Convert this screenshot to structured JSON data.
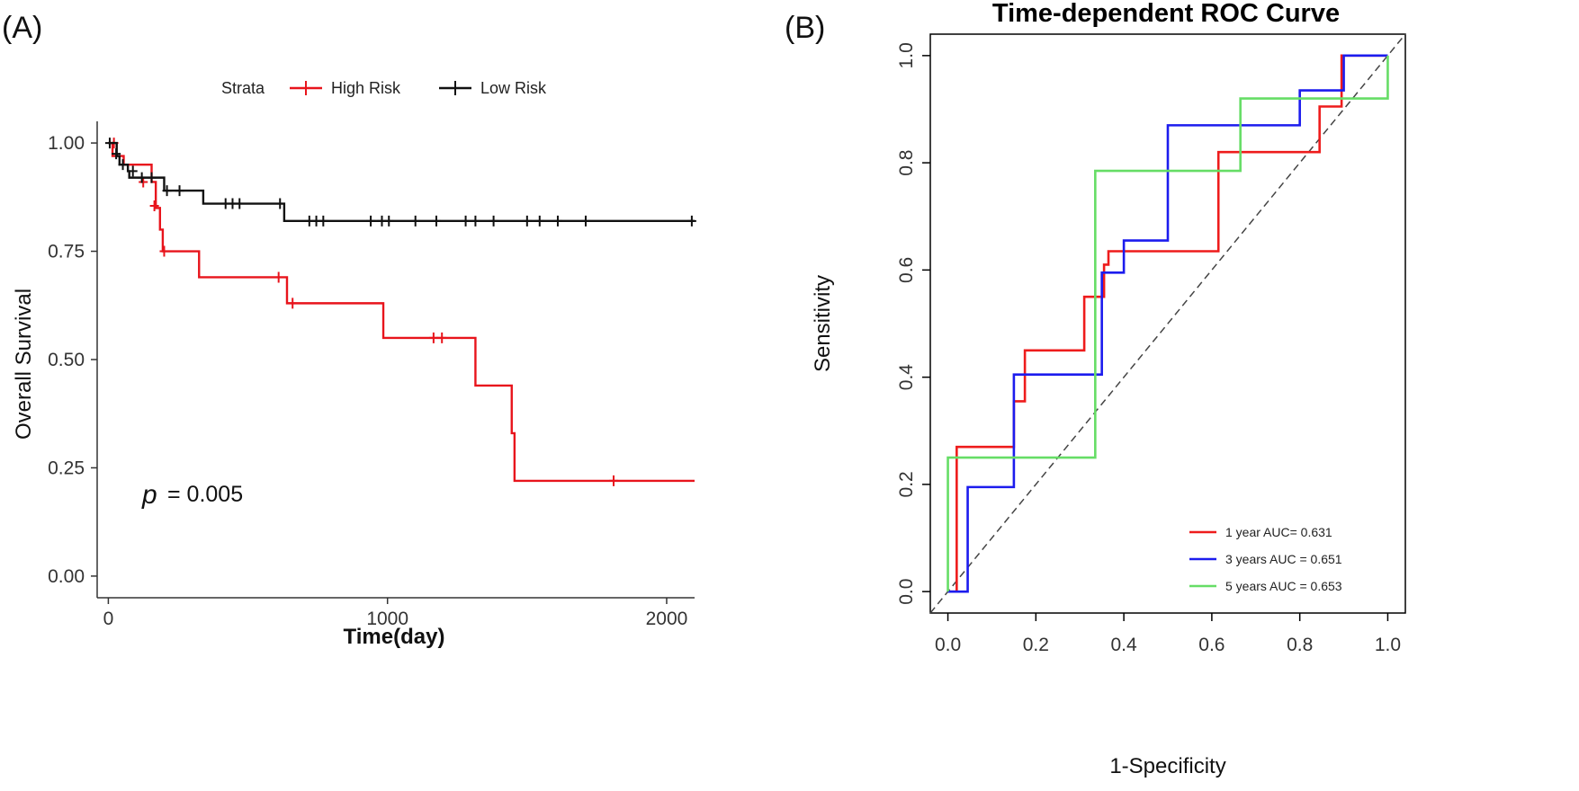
{
  "panels": {
    "a_label": "(A)",
    "b_label": "(B)"
  },
  "chart_data": [
    {
      "type": "line",
      "subtype": "kaplan-meier",
      "title": "",
      "xlabel": "Time(day)",
      "ylabel": "Overall Survival",
      "xlim": [
        -40,
        2100
      ],
      "ylim": [
        -0.05,
        1.05
      ],
      "xticks": [
        0,
        1000,
        2000
      ],
      "xtick_labels": [
        "0",
        "1000",
        "2000"
      ],
      "yticks": [
        0,
        0.25,
        0.5,
        0.75,
        1.0
      ],
      "ytick_labels": [
        "0.00",
        "0.25",
        "0.50",
        "0.75",
        "1.00"
      ],
      "legend_title": "Strata",
      "legend_position": "top",
      "annotation": {
        "p_symbol": "p",
        "p_text": "= 0.005",
        "p_value": 0.005
      },
      "series": [
        {
          "name": "High Risk",
          "color": "#e8141c",
          "steps": [
            [
              0,
              1.0
            ],
            [
              15,
              0.97
            ],
            [
              55,
              0.95
            ],
            [
              155,
              0.91
            ],
            [
              170,
              0.85
            ],
            [
              185,
              0.8
            ],
            [
              195,
              0.75
            ],
            [
              325,
              0.69
            ],
            [
              640,
              0.63
            ],
            [
              985,
              0.55
            ],
            [
              1315,
              0.44
            ],
            [
              1445,
              0.33
            ],
            [
              1455,
              0.22
            ],
            [
              2100,
              0.22
            ]
          ],
          "censor": [
            [
              20,
              1.0
            ],
            [
              125,
              0.91
            ],
            [
              165,
              0.855
            ],
            [
              200,
              0.75
            ],
            [
              610,
              0.69
            ],
            [
              660,
              0.63
            ],
            [
              1165,
              0.55
            ],
            [
              1195,
              0.55
            ],
            [
              1810,
              0.22
            ]
          ]
        },
        {
          "name": "Low Risk",
          "color": "#111111",
          "steps": [
            [
              0,
              1.0
            ],
            [
              30,
              0.97
            ],
            [
              40,
              0.95
            ],
            [
              70,
              0.935
            ],
            [
              75,
              0.92
            ],
            [
              200,
              0.89
            ],
            [
              340,
              0.86
            ],
            [
              630,
              0.82
            ],
            [
              2100,
              0.82
            ]
          ],
          "censor": [
            [
              5,
              1.0
            ],
            [
              28,
              0.975
            ],
            [
              52,
              0.95
            ],
            [
              88,
              0.935
            ],
            [
              120,
              0.92
            ],
            [
              155,
              0.92
            ],
            [
              210,
              0.89
            ],
            [
              255,
              0.89
            ],
            [
              420,
              0.86
            ],
            [
              445,
              0.86
            ],
            [
              470,
              0.86
            ],
            [
              615,
              0.86
            ],
            [
              720,
              0.82
            ],
            [
              745,
              0.82
            ],
            [
              770,
              0.82
            ],
            [
              940,
              0.82
            ],
            [
              980,
              0.82
            ],
            [
              1005,
              0.82
            ],
            [
              1100,
              0.82
            ],
            [
              1175,
              0.82
            ],
            [
              1280,
              0.82
            ],
            [
              1315,
              0.82
            ],
            [
              1380,
              0.82
            ],
            [
              1500,
              0.82
            ],
            [
              1545,
              0.82
            ],
            [
              1610,
              0.82
            ],
            [
              1710,
              0.82
            ],
            [
              2090,
              0.82
            ]
          ]
        }
      ]
    },
    {
      "type": "line",
      "subtype": "roc",
      "title": "Time-dependent ROC Curve",
      "xlabel": "1-Specificity",
      "ylabel": "Sensitivity",
      "xlim": [
        -0.04,
        1.04
      ],
      "ylim": [
        -0.04,
        1.04
      ],
      "xticks": [
        0,
        0.2,
        0.4,
        0.6,
        0.8,
        1.0
      ],
      "xtick_labels": [
        "0.0",
        "0.2",
        "0.4",
        "0.6",
        "0.8",
        "1.0"
      ],
      "yticks": [
        0,
        0.2,
        0.4,
        0.6,
        0.8,
        1.0
      ],
      "ytick_labels": [
        "0.0",
        "0.2",
        "0.4",
        "0.6",
        "0.8",
        "1.0"
      ],
      "diagonal": true,
      "legend_position": "bottom-right",
      "series": [
        {
          "name": "1 year AUC= 0.631",
          "color": "#ee1c1c",
          "points": [
            [
              0,
              0
            ],
            [
              0.02,
              0
            ],
            [
              0.02,
              0.27
            ],
            [
              0.15,
              0.27
            ],
            [
              0.15,
              0.355
            ],
            [
              0.175,
              0.355
            ],
            [
              0.175,
              0.45
            ],
            [
              0.31,
              0.45
            ],
            [
              0.31,
              0.55
            ],
            [
              0.355,
              0.55
            ],
            [
              0.355,
              0.61
            ],
            [
              0.365,
              0.61
            ],
            [
              0.365,
              0.635
            ],
            [
              0.615,
              0.635
            ],
            [
              0.615,
              0.82
            ],
            [
              0.845,
              0.82
            ],
            [
              0.845,
              0.905
            ],
            [
              0.895,
              0.905
            ],
            [
              0.895,
              1.0
            ],
            [
              1.0,
              1.0
            ]
          ]
        },
        {
          "name": "3 years AUC = 0.651",
          "color": "#1c1cee",
          "points": [
            [
              0,
              0
            ],
            [
              0.045,
              0
            ],
            [
              0.045,
              0.195
            ],
            [
              0.15,
              0.195
            ],
            [
              0.15,
              0.405
            ],
            [
              0.35,
              0.405
            ],
            [
              0.35,
              0.595
            ],
            [
              0.4,
              0.595
            ],
            [
              0.4,
              0.655
            ],
            [
              0.5,
              0.655
            ],
            [
              0.5,
              0.87
            ],
            [
              0.8,
              0.87
            ],
            [
              0.8,
              0.935
            ],
            [
              0.9,
              0.935
            ],
            [
              0.9,
              1.0
            ],
            [
              1.0,
              1.0
            ]
          ]
        },
        {
          "name": "5 years AUC = 0.653",
          "color": "#66dd66",
          "points": [
            [
              0,
              0
            ],
            [
              0,
              0.25
            ],
            [
              0.335,
              0.25
            ],
            [
              0.335,
              0.785
            ],
            [
              0.665,
              0.785
            ],
            [
              0.665,
              0.92
            ],
            [
              1.0,
              0.92
            ],
            [
              1.0,
              1.0
            ]
          ]
        }
      ]
    }
  ]
}
